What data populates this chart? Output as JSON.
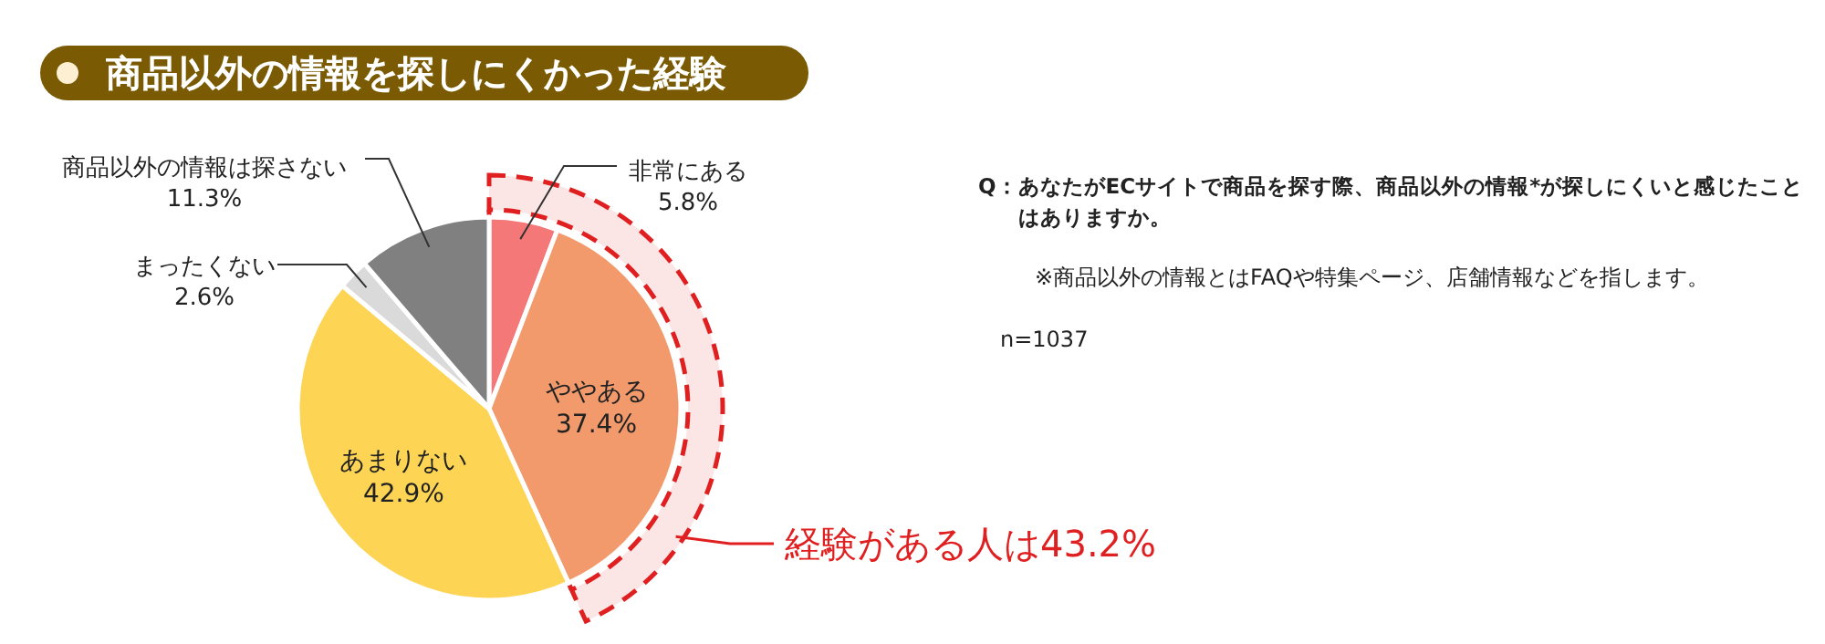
{
  "chart_data": {
    "type": "pie",
    "title": "商品以外の情報を探しにくかった経験",
    "categories": [
      "非常にある",
      "ややある",
      "あまりない",
      "まったくない",
      "商品以外の情報は探さない"
    ],
    "values": [
      5.8,
      37.4,
      42.9,
      2.6,
      11.3
    ],
    "value_labels": [
      "5.8%",
      "37.4%",
      "42.9%",
      "2.6%",
      "11.3%"
    ],
    "colors": [
      "#f47878",
      "#f29a6c",
      "#fdd453",
      "#dadada",
      "#808080"
    ],
    "annotations": [
      "経験がある人は43.2%",
      "Q：あなたがECサイトで商品を探す際、商品以外の情報*が探しにくいと感じたことはありますか。",
      "※商品以外の情報とはFAQや特集ページ、店舗情報などを指します。",
      "n=1037"
    ]
  }
}
